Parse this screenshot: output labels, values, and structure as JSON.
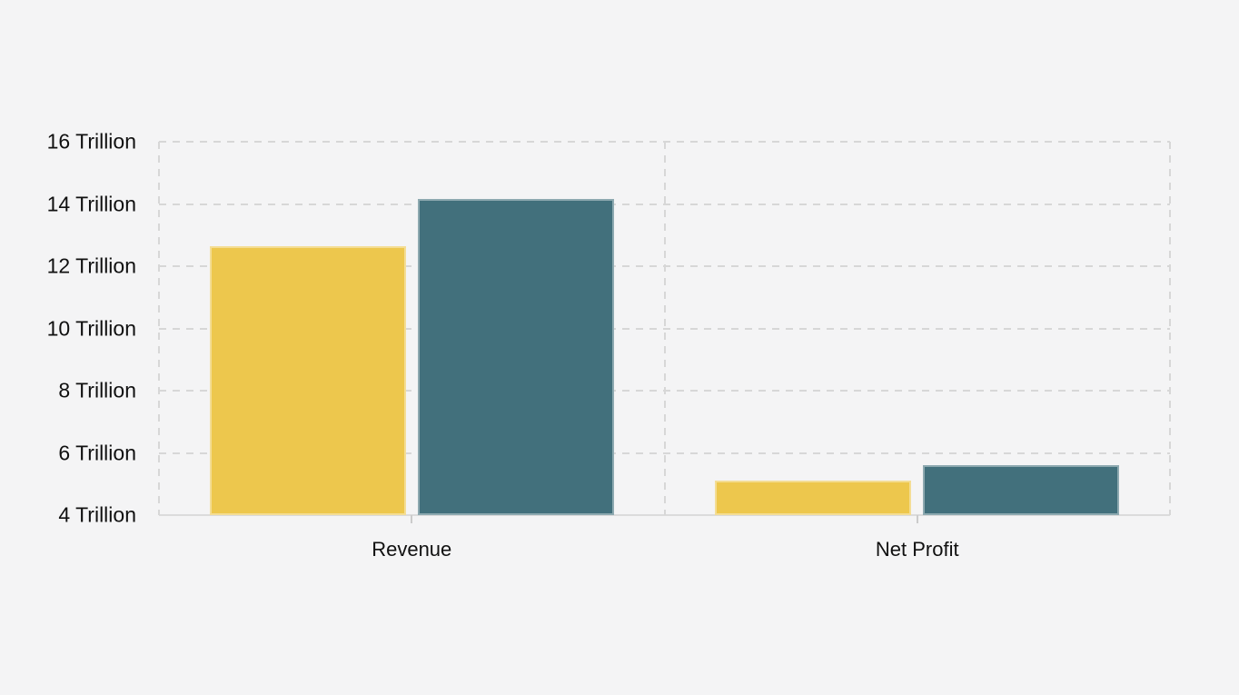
{
  "chart_data": {
    "type": "bar",
    "categories": [
      "Revenue",
      "Net Profit"
    ],
    "series": [
      {
        "name": "yellow",
        "color": "#edc74d",
        "values": [
          12.65,
          5.1
        ]
      },
      {
        "name": "teal",
        "color": "#42707c",
        "values": [
          14.15,
          5.6
        ]
      }
    ],
    "title": "",
    "xlabel": "",
    "ylabel": "",
    "ylim": [
      4,
      16
    ],
    "yticks": [
      16,
      14,
      12,
      10,
      8,
      6,
      4
    ],
    "ytick_labels": [
      "16 Trillion",
      "14 Trillion",
      "12 Trillion",
      "10 Trillion",
      "8 Trillion",
      "6 Trillion",
      "4 Trillion"
    ],
    "grid": "horizontal dashed gridlines at each ytick; vertical dashed separators at plot edges and between categories; solid light baseline at 4 Trillion",
    "legend_position": "none",
    "colors": {
      "background": "#f4f4f5",
      "gridline": "#d7d7d7",
      "baseline": "#dbdbdb",
      "tick": "#cbcbcb",
      "text": "#101010"
    }
  }
}
